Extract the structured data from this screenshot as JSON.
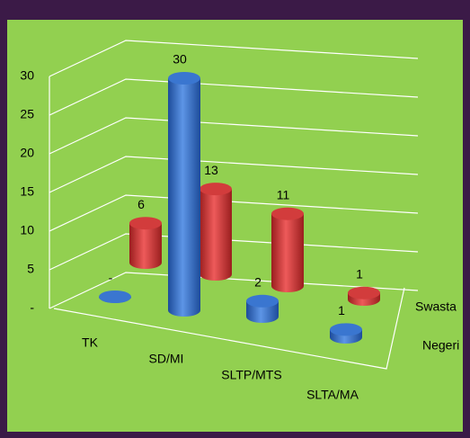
{
  "chart_data": {
    "type": "bar3d",
    "categories": [
      "TK",
      "SD/MI",
      "SLTP/MTS",
      "SLTA/MA"
    ],
    "series": [
      {
        "name": "Negeri",
        "color": "#3a76d0",
        "values": [
          0,
          30,
          2,
          1
        ],
        "value_labels": [
          "-",
          "30",
          "2",
          "1"
        ]
      },
      {
        "name": "Swasta",
        "color": "#d23c3c",
        "values": [
          6,
          13,
          11,
          1
        ]
      }
    ],
    "ylim": [
      0,
      30
    ],
    "yticks": [
      {
        "value": 0,
        "label": "-"
      },
      5,
      10,
      15,
      20,
      25,
      30
    ],
    "grid": true
  }
}
